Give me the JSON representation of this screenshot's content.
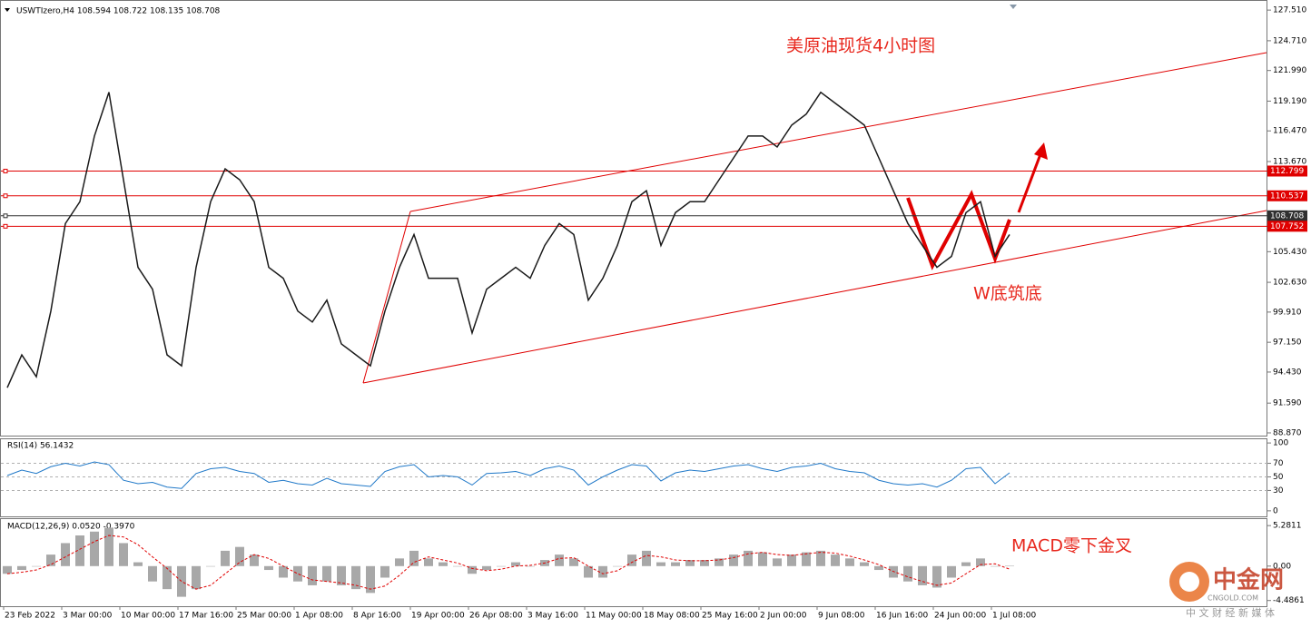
{
  "chart_data": [
    {
      "type": "line",
      "title": "USWTIzero,H4 108.594 108.722 108.135 108.708",
      "color": "#1a1a1a",
      "categories": [
        "23 Feb 2022",
        null,
        null,
        null,
        "3 Mar 00:00",
        null,
        null,
        null,
        "10 Mar 00:00",
        null,
        null,
        null,
        "17 Mar 16:00",
        null,
        null,
        null,
        "25 Mar 00:00",
        null,
        null,
        null,
        "1 Apr 08:00",
        null,
        null,
        null,
        "8 Apr 16:00",
        null,
        null,
        null,
        "19 Apr 00:00",
        null,
        null,
        null,
        "26 Apr 08:00",
        null,
        null,
        null,
        "3 May 16:00",
        null,
        null,
        null,
        "11 May 00:00",
        null,
        null,
        null,
        "18 May 08:00",
        null,
        null,
        null,
        "25 May 16:00",
        null,
        null,
        null,
        "2 Jun 00:00",
        null,
        null,
        null,
        "9 Jun 08:00",
        null,
        null,
        null,
        "16 Jun 16:00",
        null,
        null,
        null,
        "24 Jun 00:00",
        null,
        null,
        null,
        "1 Jul 08:00",
        null
      ],
      "values": [
        93,
        96,
        94,
        100,
        108,
        110,
        116,
        120,
        112,
        104,
        102,
        96,
        95,
        104,
        110,
        113,
        112,
        110,
        104,
        103,
        100,
        99,
        101,
        97,
        96,
        95,
        100,
        104,
        107,
        103,
        103,
        103,
        98,
        102,
        103,
        104,
        103,
        106,
        108,
        107,
        101,
        103,
        106,
        110,
        111,
        106,
        109,
        110,
        110,
        112,
        114,
        116,
        116,
        115,
        117,
        118,
        120,
        119,
        118,
        117,
        114,
        111,
        108,
        106,
        104,
        105,
        109,
        110,
        105,
        107
      ],
      "ylim": [
        88.62,
        128.35
      ],
      "yticks": [
        {
          "value": 127.51,
          "label": "127.510"
        },
        {
          "value": 124.71,
          "label": "124.710"
        },
        {
          "value": 121.99,
          "label": "121.990"
        },
        {
          "value": 119.19,
          "label": "119.190"
        },
        {
          "value": 116.47,
          "label": "116.470"
        },
        {
          "value": 113.67,
          "label": "113.670"
        },
        {
          "value": 105.43,
          "label": "105.430"
        },
        {
          "value": 102.63,
          "label": "102.630"
        },
        {
          "value": 99.91,
          "label": "99.910"
        },
        {
          "value": 97.15,
          "label": "97.150"
        },
        {
          "value": 94.43,
          "label": "94.430"
        },
        {
          "value": 91.59,
          "label": "91.590"
        },
        {
          "value": 88.87,
          "label": "88.870"
        }
      ],
      "levels": [
        {
          "value": 112.799,
          "color": "#e00000"
        },
        {
          "value": 110.537,
          "color": "#e00000"
        },
        {
          "value": 108.708,
          "color": "#303030"
        },
        {
          "value": 107.752,
          "color": "#e00000"
        }
      ],
      "annotations": [
        "美原油现货4小时图",
        "W底筑底"
      ]
    },
    {
      "type": "line",
      "title": "RSI(14) 56.1432",
      "color": "#1f78c8",
      "values": [
        52,
        60,
        55,
        65,
        70,
        66,
        72,
        68,
        45,
        40,
        42,
        35,
        33,
        55,
        62,
        64,
        58,
        55,
        42,
        45,
        40,
        38,
        48,
        40,
        38,
        36,
        58,
        65,
        68,
        50,
        52,
        50,
        38,
        55,
        56,
        58,
        52,
        62,
        66,
        60,
        38,
        50,
        60,
        68,
        66,
        44,
        56,
        60,
        58,
        62,
        66,
        68,
        62,
        58,
        64,
        66,
        70,
        62,
        58,
        56,
        45,
        40,
        38,
        40,
        35,
        45,
        62,
        64,
        40,
        56
      ],
      "ylim": [
        -8.2,
        105.5
      ],
      "yticks": [
        100,
        70,
        50,
        30,
        0
      ]
    },
    {
      "type": "bar",
      "title": "MACD(12,26,9) 0.0520 -0.3970",
      "color": "#a8a8a8",
      "signal_color": "#e00000",
      "values": [
        -1.0,
        -0.5,
        0.0,
        1.5,
        3.0,
        4.0,
        4.5,
        5.0,
        3.0,
        0.5,
        -2.0,
        -3.0,
        -4.0,
        -3.0,
        0.0,
        2.0,
        2.5,
        1.5,
        -0.5,
        -1.5,
        -2.0,
        -2.5,
        -2.0,
        -2.5,
        -3.0,
        -3.5,
        -1.5,
        1.0,
        2.0,
        1.0,
        0.5,
        0.0,
        -1.0,
        -0.5,
        0.0,
        0.5,
        0.0,
        0.8,
        1.5,
        1.0,
        -1.5,
        -1.5,
        0.0,
        1.5,
        2.0,
        0.5,
        0.5,
        0.8,
        0.8,
        1.0,
        1.5,
        2.0,
        1.8,
        1.0,
        1.5,
        1.8,
        2.0,
        1.5,
        1.0,
        0.5,
        -0.5,
        -1.5,
        -2.0,
        -2.5,
        -2.8,
        -1.5,
        0.5,
        1.0,
        0.0,
        0.052
      ],
      "signal_values": [
        -1.0,
        -0.8,
        -0.5,
        0.2,
        1.2,
        2.2,
        3.2,
        4.0,
        3.8,
        2.8,
        1.2,
        -0.3,
        -2.0,
        -3.0,
        -2.5,
        -1.0,
        0.5,
        1.5,
        1.0,
        0.0,
        -1.0,
        -1.8,
        -2.0,
        -2.2,
        -2.5,
        -3.0,
        -2.6,
        -1.2,
        0.5,
        1.2,
        0.8,
        0.4,
        -0.3,
        -0.6,
        -0.4,
        0.0,
        0.1,
        0.4,
        1.0,
        1.1,
        0.0,
        -1.0,
        -0.6,
        0.5,
        1.4,
        1.2,
        0.8,
        0.7,
        0.7,
        0.8,
        1.1,
        1.6,
        1.8,
        1.5,
        1.4,
        1.6,
        1.8,
        1.7,
        1.3,
        0.8,
        0.2,
        -0.7,
        -1.4,
        -2.0,
        -2.5,
        -2.2,
        -1.0,
        0.2,
        0.3,
        -0.397
      ],
      "ylim": [
        -5.23,
        6.13
      ],
      "yticks": [
        5.2811,
        {
          "value": 0,
          "label": "0.00"
        },
        -4.4861
      ],
      "annotations": [
        "MACD零下金叉"
      ]
    }
  ],
  "watermark": {
    "name": "中金网",
    "site": "CNGOLD.COM",
    "slogan": "中 文 财 经 新 媒 体"
  }
}
